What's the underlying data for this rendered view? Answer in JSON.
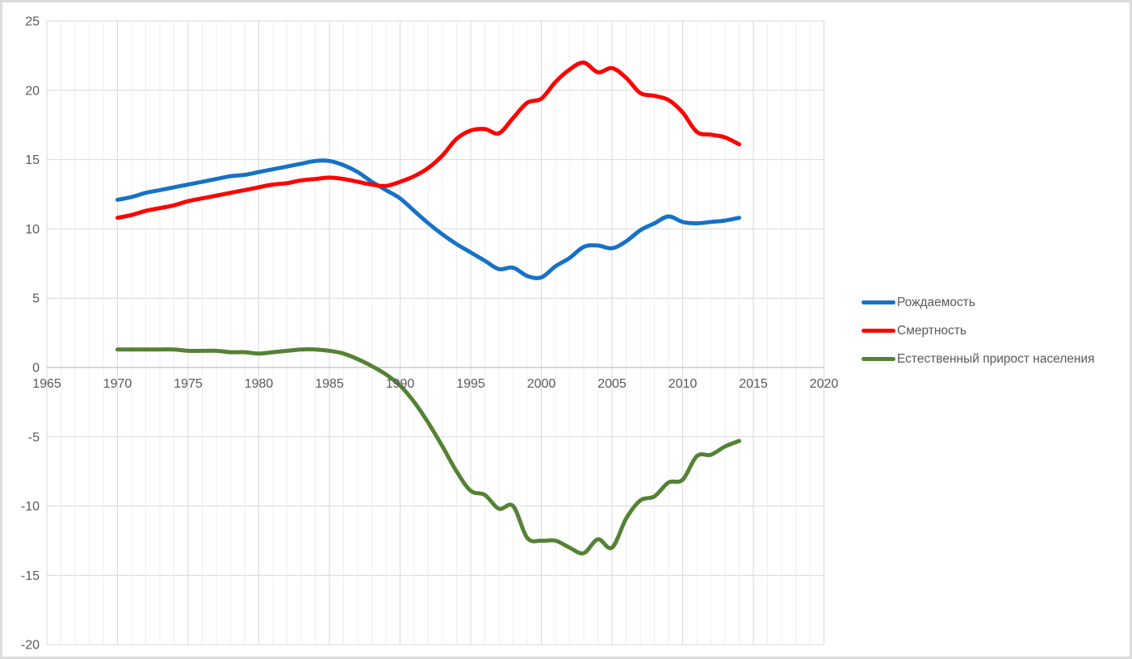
{
  "chart_data": {
    "type": "line",
    "title": "",
    "xlabel": "",
    "ylabel": "",
    "xlim": [
      1965,
      2020
    ],
    "ylim": [
      -20,
      25
    ],
    "x_ticks": [
      1965,
      1970,
      1975,
      1980,
      1985,
      1990,
      1995,
      2000,
      2005,
      2010,
      2015,
      2020
    ],
    "y_ticks": [
      25,
      20,
      15,
      10,
      5,
      0,
      -5,
      -10,
      -15,
      -20
    ],
    "grid": "horizontal major every 5 units; vertical minor every year, major every 5 years",
    "legend_position": "right",
    "x": [
      1970,
      1971,
      1972,
      1973,
      1974,
      1975,
      1976,
      1977,
      1978,
      1979,
      1980,
      1981,
      1982,
      1983,
      1984,
      1985,
      1986,
      1987,
      1988,
      1989,
      1990,
      1991,
      1992,
      1993,
      1994,
      1995,
      1996,
      1997,
      1998,
      1999,
      2000,
      2001,
      2002,
      2003,
      2004,
      2005,
      2006,
      2007,
      2008,
      2009,
      2010,
      2011,
      2012,
      2013,
      2014
    ],
    "series": [
      {
        "name": "Рождаемость",
        "color": "#1572C6",
        "values": [
          12.1,
          12.3,
          12.6,
          12.8,
          13.0,
          13.2,
          13.4,
          13.6,
          13.8,
          13.9,
          14.1,
          14.3,
          14.5,
          14.7,
          14.9,
          14.9,
          14.6,
          14.1,
          13.4,
          12.8,
          12.2,
          11.3,
          10.4,
          9.6,
          8.9,
          8.3,
          7.7,
          7.1,
          7.2,
          6.6,
          6.5,
          7.3,
          7.9,
          8.7,
          8.8,
          8.6,
          9.1,
          9.9,
          10.4,
          10.9,
          10.5,
          10.4,
          10.5,
          10.6,
          10.8
        ]
      },
      {
        "name": "Смертность",
        "color": "#FF0000",
        "values": [
          10.8,
          11.0,
          11.3,
          11.5,
          11.7,
          12.0,
          12.2,
          12.4,
          12.6,
          12.8,
          13.0,
          13.2,
          13.3,
          13.5,
          13.6,
          13.7,
          13.6,
          13.4,
          13.2,
          13.1,
          13.4,
          13.8,
          14.4,
          15.3,
          16.5,
          17.1,
          17.2,
          16.9,
          18.0,
          19.1,
          19.4,
          20.6,
          21.5,
          22.0,
          21.3,
          21.6,
          20.9,
          19.8,
          19.6,
          19.3,
          18.4,
          17.0,
          16.8,
          16.6,
          16.1
        ]
      },
      {
        "name": "Естественный прирост населения",
        "color": "#548235",
        "values": [
          1.3,
          1.3,
          1.3,
          1.3,
          1.3,
          1.2,
          1.2,
          1.2,
          1.1,
          1.1,
          1.0,
          1.1,
          1.2,
          1.3,
          1.3,
          1.2,
          1.0,
          0.6,
          0.1,
          -0.5,
          -1.3,
          -2.5,
          -4.0,
          -5.7,
          -7.5,
          -8.9,
          -9.2,
          -10.2,
          -10.0,
          -12.3,
          -12.5,
          -12.5,
          -13.0,
          -13.4,
          -12.4,
          -13.0,
          -10.9,
          -9.6,
          -9.3,
          -8.3,
          -8.1,
          -6.4,
          -6.3,
          -5.7,
          -5.3
        ]
      }
    ]
  },
  "style": {
    "frame_border_color": "#DBDBDB",
    "grid_major_color": "#D9D9D9",
    "grid_minor_color": "#EFEFEF",
    "axis_line_color": "#BFBFBF",
    "tick_label_color": "#595959",
    "background_color": "#FFFFFF"
  }
}
